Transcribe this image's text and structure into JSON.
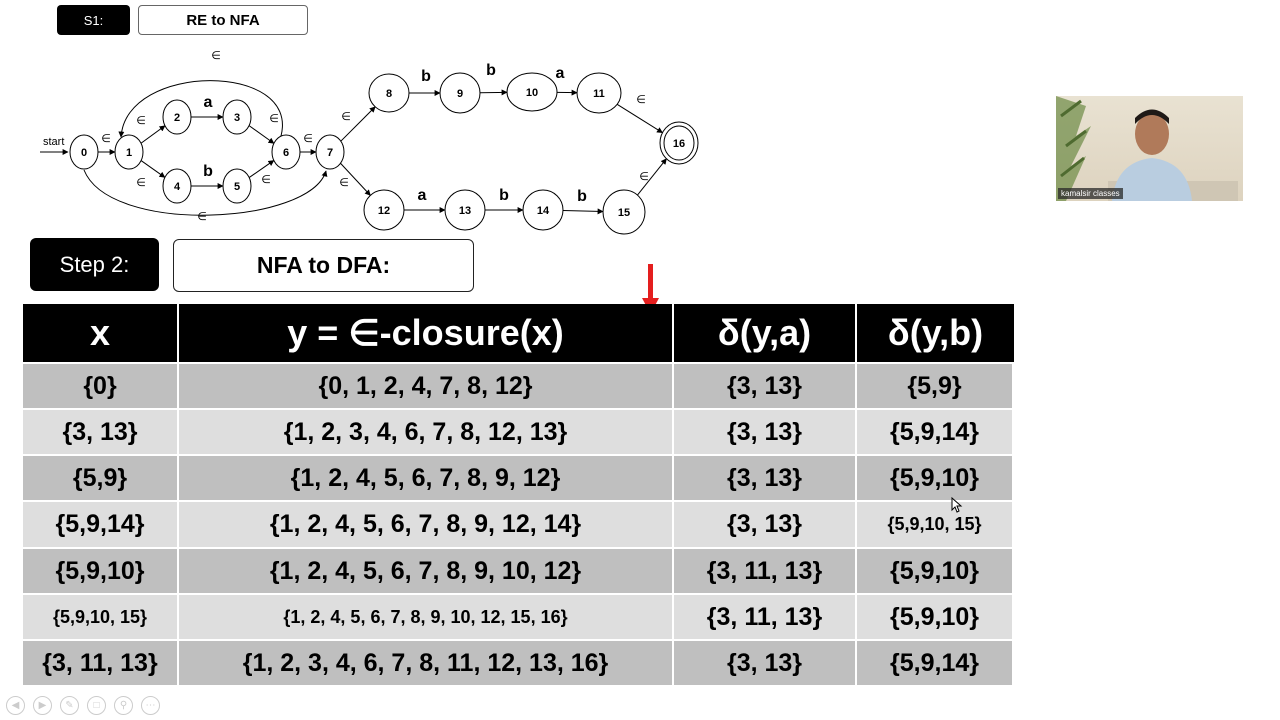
{
  "step1": {
    "badge": "S1:",
    "title": "RE to NFA"
  },
  "step2": {
    "badge": "Step 2:",
    "title": "NFA to DFA:"
  },
  "nfa": {
    "start_label": "start",
    "states": [
      "0",
      "1",
      "2",
      "3",
      "4",
      "5",
      "6",
      "7",
      "8",
      "9",
      "10",
      "11",
      "12",
      "13",
      "14",
      "15",
      "16"
    ],
    "accept_state": "16",
    "epsilon": "∈",
    "transitions": [
      {
        "from": "0",
        "to": "1",
        "label": "∈"
      },
      {
        "from": "1",
        "to": "2",
        "label": "∈"
      },
      {
        "from": "1",
        "to": "4",
        "label": "∈"
      },
      {
        "from": "2",
        "to": "3",
        "label": "a"
      },
      {
        "from": "4",
        "to": "5",
        "label": "b"
      },
      {
        "from": "3",
        "to": "6",
        "label": "∈"
      },
      {
        "from": "5",
        "to": "6",
        "label": "∈"
      },
      {
        "from": "6",
        "to": "1",
        "label": "∈"
      },
      {
        "from": "6",
        "to": "7",
        "label": "∈"
      },
      {
        "from": "0",
        "to": "7",
        "label": "∈"
      },
      {
        "from": "7",
        "to": "8",
        "label": "∈"
      },
      {
        "from": "7",
        "to": "12",
        "label": "∈"
      },
      {
        "from": "8",
        "to": "9",
        "label": "b"
      },
      {
        "from": "9",
        "to": "10",
        "label": "b"
      },
      {
        "from": "10",
        "to": "11",
        "label": "a"
      },
      {
        "from": "11",
        "to": "16",
        "label": "∈"
      },
      {
        "from": "12",
        "to": "13",
        "label": "a"
      },
      {
        "from": "13",
        "to": "14",
        "label": "b"
      },
      {
        "from": "14",
        "to": "15",
        "label": "b"
      },
      {
        "from": "15",
        "to": "16",
        "label": "∈"
      }
    ]
  },
  "webcam": {
    "caption": "kamalsir classes"
  },
  "table": {
    "headers": [
      "x",
      "y = ∈-closure(x)",
      "δ(y,a)",
      "δ(y,b)"
    ],
    "rows": [
      [
        "{0}",
        "{0, 1, 2, 4, 7, 8, 12}",
        "{3, 13}",
        "{5,9}"
      ],
      [
        "{3, 13}",
        "{1, 2, 3, 4, 6, 7, 8, 12, 13}",
        "{3, 13}",
        "{5,9,14}"
      ],
      [
        "{5,9}",
        "{1, 2, 4, 5, 6, 7, 8, 9, 12}",
        "{3, 13}",
        "{5,9,10}"
      ],
      [
        "{5,9,14}",
        "{1, 2, 4, 5, 6, 7, 8, 9, 12, 14}",
        "{3, 13}",
        "{5,9,10, 15}"
      ],
      [
        "{5,9,10}",
        "{1, 2, 4, 5, 6, 7, 8, 9, 10, 12}",
        "{3, 11, 13}",
        "{5,9,10}"
      ],
      [
        "{5,9,10, 15}",
        "{1, 2, 4, 5, 6, 7, 8, 9, 10, 12, 15, 16}",
        "{3, 11, 13}",
        "{5,9,10}"
      ],
      [
        "{3, 11, 13}",
        "{1, 2, 3, 4, 6, 7, 8, 11, 12, 13, 16}",
        "{3, 13}",
        "{5,9,14}"
      ]
    ]
  },
  "colors": {
    "header_bg": "#000000",
    "row_dark": "#bfbfbf",
    "row_light": "#dedede",
    "marker": "#e41e1e"
  },
  "player_controls": [
    "prev-icon",
    "next-icon",
    "pen-icon",
    "copy-icon",
    "zoom-icon",
    "more-icon"
  ]
}
